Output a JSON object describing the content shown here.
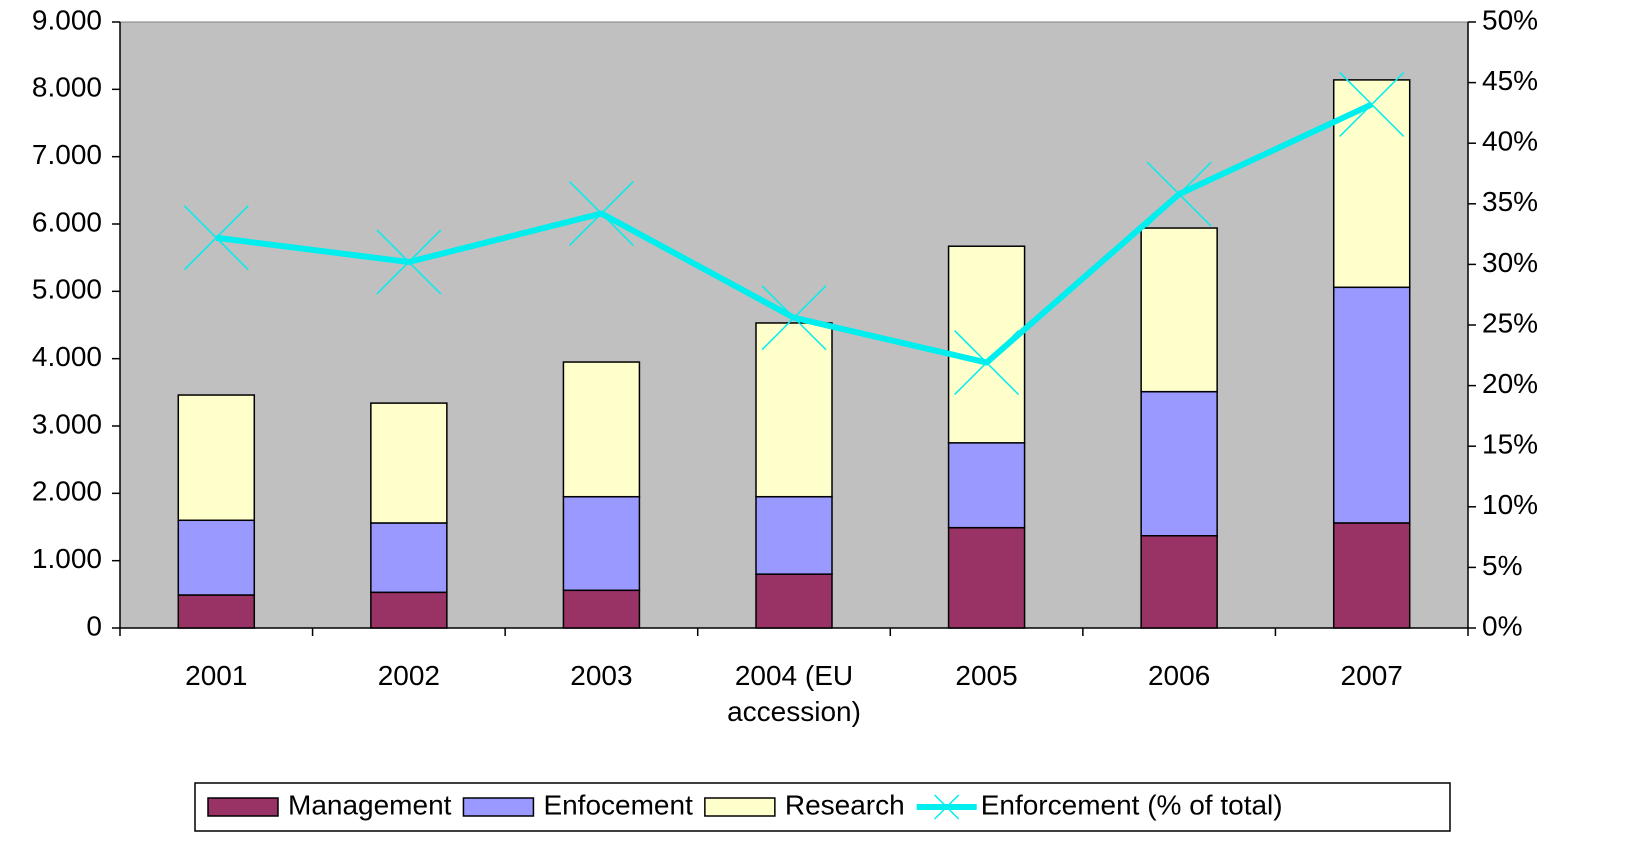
{
  "chart_data": {
    "type": "bar-line",
    "categories": [
      "2001",
      "2002",
      "2003",
      "2004 (EU accession)",
      "2005",
      "2006",
      "2007"
    ],
    "series": [
      {
        "name": "Management",
        "color": "#993366",
        "values": [
          490,
          530,
          560,
          800,
          1490,
          1370,
          1560
        ]
      },
      {
        "name": "Enfocement",
        "color": "#9999ff",
        "values": [
          1110,
          1030,
          1390,
          1150,
          1260,
          2140,
          3500
        ]
      },
      {
        "name": "Research",
        "color": "#ffffcc",
        "values": [
          1860,
          1780,
          2000,
          2580,
          2920,
          2430,
          3080
        ]
      },
      {
        "name": "Enforcement (% of total)",
        "color": "#00eeee",
        "axis": "y2",
        "values": [
          32.2,
          30.2,
          34.2,
          25.6,
          21.9,
          35.8,
          43.2
        ]
      }
    ],
    "stacked": true,
    "ylim": [
      0,
      9000
    ],
    "yticks": [
      0,
      {
        "value": 1000,
        "label": "1.000"
      },
      {
        "value": 2000,
        "label": "2.000"
      },
      {
        "value": 3000,
        "label": "3.000"
      },
      {
        "value": 4000,
        "label": "4.000"
      },
      {
        "value": 5000,
        "label": "5.000"
      },
      {
        "value": 6000,
        "label": "6.000"
      },
      {
        "value": 7000,
        "label": "7.000"
      },
      {
        "value": 8000,
        "label": "8.000"
      },
      {
        "value": 9000,
        "label": "9.000"
      }
    ],
    "y2lim": [
      0,
      50
    ],
    "y2ticks": [
      {
        "value": 0,
        "label": "0%"
      },
      {
        "value": 5,
        "label": "5%"
      },
      {
        "value": 10,
        "label": "10%"
      },
      {
        "value": 15,
        "label": "15%"
      },
      {
        "value": 20,
        "label": "20%"
      },
      {
        "value": 25,
        "label": "25%"
      },
      {
        "value": 30,
        "label": "30%"
      },
      {
        "value": 35,
        "label": "35%"
      },
      {
        "value": 40,
        "label": "40%"
      },
      {
        "value": 45,
        "label": "45%"
      },
      {
        "value": 50,
        "label": "50%"
      }
    ],
    "plot_background": "#c0c0c0",
    "legend": "bottom"
  }
}
